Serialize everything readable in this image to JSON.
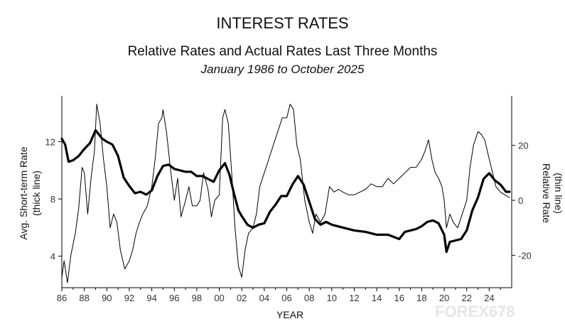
{
  "chart_data": {
    "type": "line",
    "title": "INTEREST RATES",
    "subtitle": "Relative Rates and Actual Rates Last Three Months",
    "subtitle2": "January 1986 to October 2025",
    "xlabel": "YEAR",
    "ylabel_left": "Avg. Short-term Rate",
    "ylabel_left_note": "(thick line)",
    "ylabel_right": "Relative Rate",
    "ylabel_right_note": "(thin line)",
    "x_ticks": [
      "86",
      "88",
      "90",
      "92",
      "94",
      "96",
      "98",
      "00",
      "02",
      "04",
      "06",
      "08",
      "10",
      "12",
      "14",
      "16",
      "18",
      "20",
      "22",
      "24"
    ],
    "y_left_ticks": [
      4,
      8,
      12
    ],
    "y_right_ticks": [
      -20,
      0,
      20
    ],
    "xlim": [
      1986,
      2026
    ],
    "ylim_left": [
      1.8,
      15.2
    ],
    "ylim_right": [
      -31.8,
      38.0
    ],
    "grid": false,
    "watermark": "FOREX678",
    "series": [
      {
        "axis": "left",
        "style": "thick",
        "x": [
          1986.0,
          1986.3,
          1986.6,
          1987.0,
          1987.5,
          1988.0,
          1988.5,
          1989.0,
          1989.3,
          1989.6,
          1990.0,
          1990.5,
          1991.0,
          1991.5,
          1992.0,
          1992.5,
          1993.0,
          1993.5,
          1994.0,
          1994.5,
          1995.0,
          1995.5,
          1996.0,
          1996.5,
          1997.0,
          1997.5,
          1998.0,
          1998.5,
          1999.0,
          1999.5,
          2000.0,
          2000.5,
          2000.9,
          2001.3,
          2001.7,
          2002.0,
          2002.5,
          2003.0,
          2003.5,
          2004.0,
          2004.5,
          2005.0,
          2005.5,
          2006.0,
          2006.5,
          2007.0,
          2007.5,
          2008.0,
          2008.5,
          2009.0,
          2009.5,
          2010.0,
          2011.0,
          2012.0,
          2013.0,
          2014.0,
          2015.0,
          2016.0,
          2016.5,
          2017.0,
          2017.5,
          2018.0,
          2018.5,
          2019.0,
          2019.5,
          2020.0,
          2020.2,
          2020.5,
          2021.0,
          2021.5,
          2022.0,
          2022.5,
          2023.0,
          2023.5,
          2024.0,
          2024.5,
          2025.0,
          2025.5,
          2025.8
        ],
        "y": [
          12.2,
          11.8,
          10.6,
          10.7,
          11.0,
          11.5,
          11.9,
          12.8,
          12.5,
          12.2,
          12.0,
          11.8,
          11.0,
          9.5,
          8.9,
          8.4,
          8.5,
          8.3,
          8.6,
          9.6,
          10.3,
          10.4,
          10.1,
          10.0,
          9.9,
          9.9,
          9.6,
          9.6,
          9.4,
          9.2,
          10.0,
          10.5,
          9.7,
          8.4,
          7.2,
          6.8,
          6.2,
          6.0,
          6.2,
          6.3,
          7.1,
          7.6,
          8.2,
          8.2,
          9.0,
          9.6,
          9.0,
          7.8,
          6.6,
          6.2,
          6.4,
          6.2,
          6.0,
          5.8,
          5.7,
          5.5,
          5.5,
          5.2,
          5.7,
          5.8,
          5.9,
          6.1,
          6.4,
          6.5,
          6.3,
          5.5,
          4.3,
          5.0,
          5.1,
          5.2,
          5.8,
          7.2,
          8.1,
          9.4,
          9.8,
          9.3,
          9.0,
          8.5,
          8.5
        ]
      },
      {
        "axis": "right",
        "style": "thin",
        "x": [
          1986.0,
          1986.2,
          1986.5,
          1986.8,
          1987.2,
          1987.5,
          1987.8,
          1988.0,
          1988.3,
          1988.6,
          1988.9,
          1989.1,
          1989.4,
          1989.7,
          1990.0,
          1990.3,
          1990.6,
          1990.9,
          1991.2,
          1991.6,
          1992.0,
          1992.3,
          1992.6,
          1992.9,
          1993.2,
          1993.6,
          1994.0,
          1994.3,
          1994.6,
          1994.9,
          1995.0,
          1995.3,
          1995.7,
          1996.0,
          1996.3,
          1996.6,
          1997.0,
          1997.3,
          1997.6,
          1998.0,
          1998.3,
          1998.6,
          1999.0,
          1999.3,
          1999.6,
          2000.0,
          2000.3,
          2000.5,
          2000.8,
          2001.1,
          2001.4,
          2001.7,
          2002.0,
          2002.3,
          2002.6,
          2003.0,
          2003.3,
          2003.6,
          2004.0,
          2004.4,
          2004.8,
          2005.2,
          2005.6,
          2006.0,
          2006.3,
          2006.6,
          2006.9,
          2007.2,
          2007.6,
          2008.0,
          2008.3,
          2008.6,
          2009.0,
          2009.4,
          2009.8,
          2010.2,
          2010.6,
          2011.0,
          2011.5,
          2012.0,
          2012.5,
          2013.0,
          2013.5,
          2014.0,
          2014.5,
          2015.0,
          2015.5,
          2016.0,
          2016.5,
          2017.0,
          2017.5,
          2018.0,
          2018.3,
          2018.6,
          2018.9,
          2019.2,
          2019.5,
          2019.8,
          2020.0,
          2020.2,
          2020.5,
          2020.8,
          2021.2,
          2021.6,
          2022.0,
          2022.3,
          2022.6,
          2023.0,
          2023.3,
          2023.6,
          2024.0,
          2024.3,
          2024.6,
          2025.0,
          2025.4,
          2025.8
        ],
        "y": [
          -28,
          -22,
          -30,
          -20,
          -12,
          -3,
          12,
          10,
          -5,
          8,
          18,
          35,
          28,
          15,
          5,
          -10,
          -5,
          -8,
          -18,
          -25,
          -22,
          -18,
          -12,
          -8,
          -5,
          -2,
          5,
          15,
          28,
          30,
          33,
          25,
          10,
          0,
          8,
          -6,
          0,
          5,
          -2,
          -2,
          0,
          10,
          4,
          -6,
          0,
          2,
          30,
          33,
          28,
          10,
          -10,
          -24,
          -28,
          -18,
          -12,
          -10,
          -5,
          5,
          10,
          15,
          20,
          25,
          30,
          30,
          35,
          33,
          20,
          15,
          0,
          -8,
          -12,
          -5,
          -8,
          -5,
          5,
          3,
          4,
          3,
          2,
          2,
          3,
          4,
          6,
          5,
          5,
          8,
          6,
          8,
          10,
          12,
          12,
          15,
          18,
          22,
          15,
          10,
          8,
          5,
          0,
          -10,
          -5,
          -8,
          -10,
          -5,
          0,
          12,
          20,
          25,
          24,
          22,
          15,
          10,
          5,
          3,
          2,
          1
        ]
      }
    ]
  }
}
